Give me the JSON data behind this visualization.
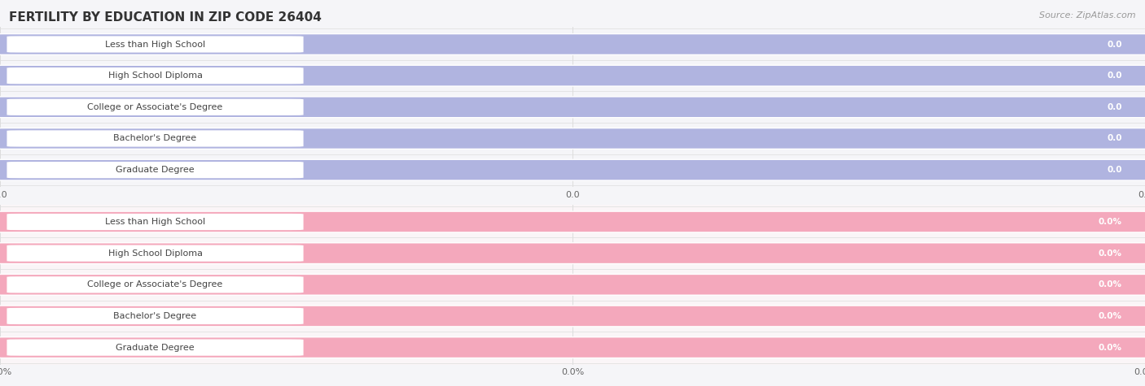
{
  "title": "FERTILITY BY EDUCATION IN ZIP CODE 26404",
  "source": "Source: ZipAtlas.com",
  "categories": [
    "Less than High School",
    "High School Diploma",
    "College or Associate's Degree",
    "Bachelor's Degree",
    "Graduate Degree"
  ],
  "values_top": [
    0.0,
    0.0,
    0.0,
    0.0,
    0.0
  ],
  "values_bottom": [
    0.0,
    0.0,
    0.0,
    0.0,
    0.0
  ],
  "bar_color_top": "#b0b4e0",
  "bar_color_bottom": "#f4a8bc",
  "bar_bg_top": "#e8e8f4",
  "bar_bg_bottom": "#fce8f0",
  "fig_bg": "#f5f5f8",
  "row_bg_top": "#f5f5f8",
  "row_bg_bottom": "#faf5f7",
  "white_pill": "#ffffff",
  "text_dark": "#444444",
  "text_white": "#ffffff",
  "tick_color": "#666666",
  "grid_color": "#dddddd",
  "title_color": "#333333",
  "source_color": "#999999",
  "title_fontsize": 11,
  "source_fontsize": 8,
  "cat_fontsize": 8,
  "val_fontsize": 7.5
}
